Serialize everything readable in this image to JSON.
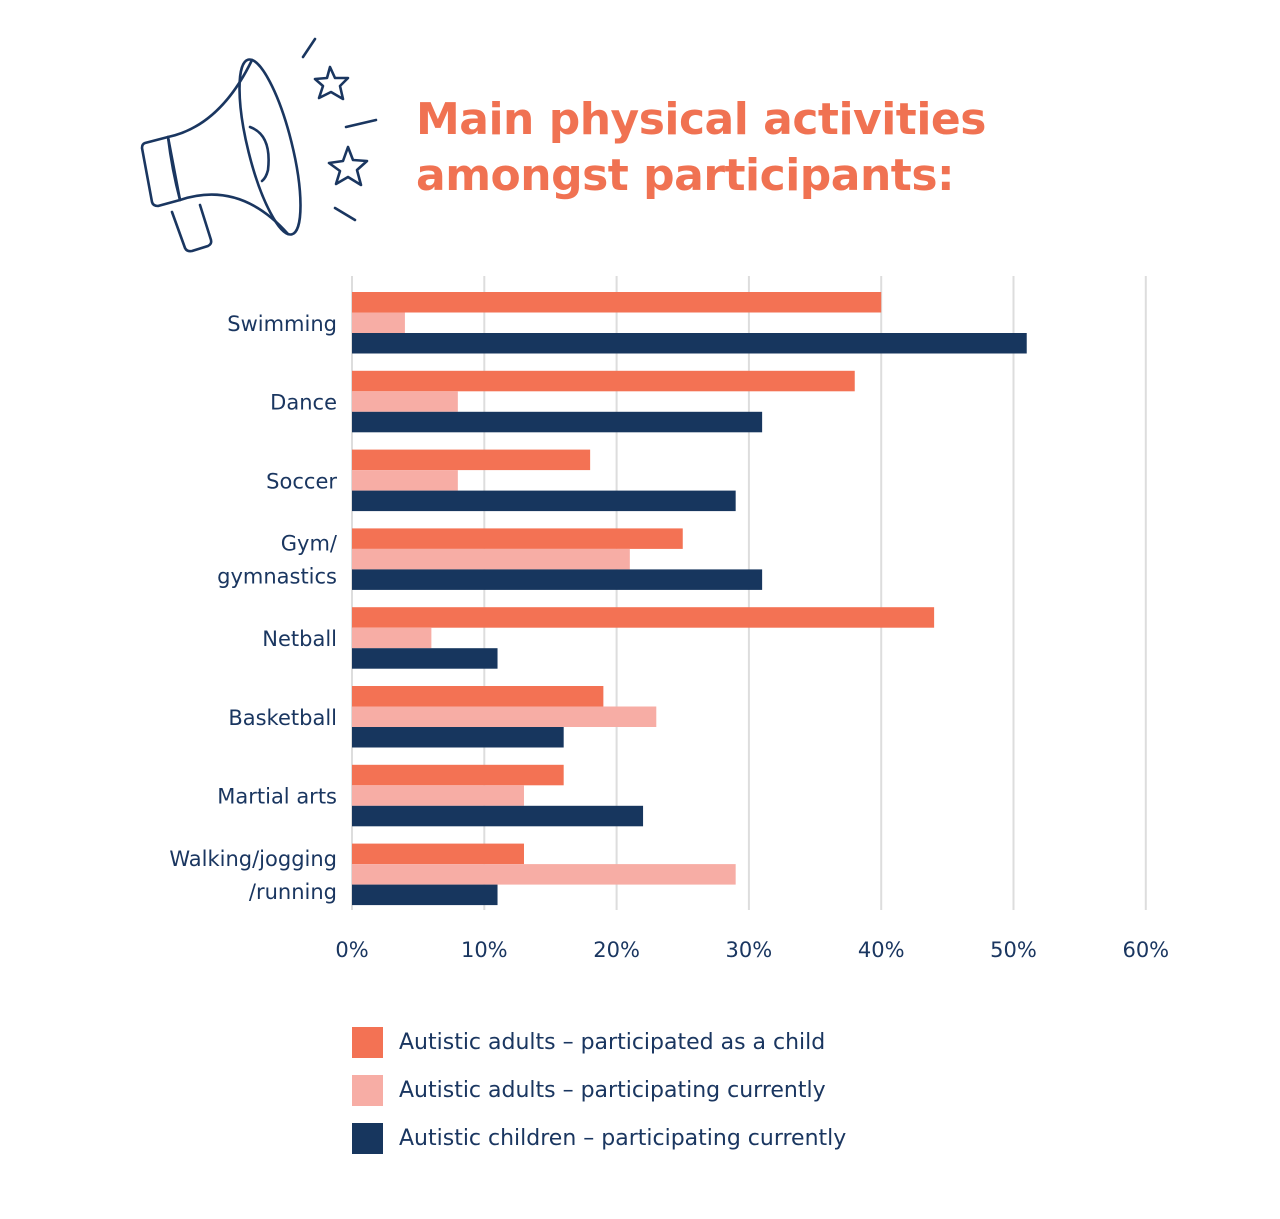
{
  "title_lines": [
    "Main physical activities",
    "amongst participants:"
  ],
  "header_icon": "megaphone-icon",
  "colors": {
    "title": "#f07252",
    "text": "#1a3660",
    "grid": "#dddddd"
  },
  "chart_data": {
    "type": "bar",
    "orientation": "horizontal",
    "title": "Main physical activities amongst participants:",
    "xlabel": "",
    "ylabel": "",
    "categories": [
      [
        "Swimming"
      ],
      [
        "Dance"
      ],
      [
        "Soccer"
      ],
      [
        "Gym/",
        "gymnastics"
      ],
      [
        "Netball"
      ],
      [
        "Basketball"
      ],
      [
        "Martial arts"
      ],
      [
        "Walking/jogging",
        "/running"
      ]
    ],
    "series": [
      {
        "name": "Autistic adults – participated as a child",
        "color": "#f37254",
        "values": [
          40,
          38,
          18,
          25,
          44,
          19,
          16,
          13
        ]
      },
      {
        "name": "Autistic adults – participating currently",
        "color": "#f7ada5",
        "values": [
          4,
          8,
          8,
          21,
          6,
          23,
          13,
          29
        ]
      },
      {
        "name": "Autistic children – participating currently",
        "color": "#17365e",
        "values": [
          51,
          31,
          29,
          31,
          11,
          16,
          22,
          11
        ]
      }
    ],
    "xlim": [
      0,
      60
    ],
    "xticks": [
      0,
      10,
      20,
      30,
      40,
      50,
      60
    ],
    "xtick_labels": [
      "0%",
      "10%",
      "20%",
      "30%",
      "40%",
      "50%",
      "60%"
    ],
    "grid": true,
    "legend_position": "bottom"
  }
}
